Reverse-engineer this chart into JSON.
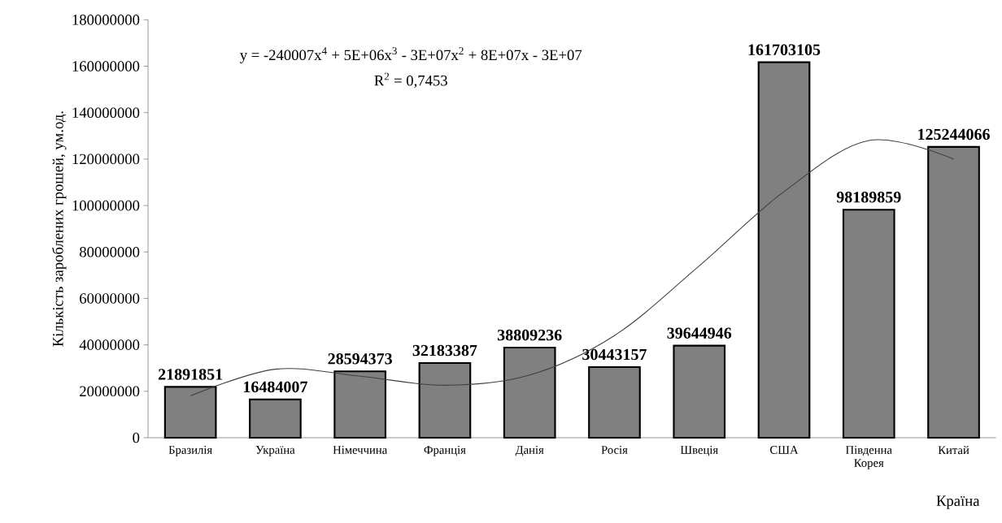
{
  "chart_data": {
    "type": "bar",
    "ylabel": "Кількість зароблених грошей, ум.од.",
    "xlabel": "Країна",
    "categories": [
      "Бразилія",
      "Україна",
      "Німеччина",
      "Франція",
      "Данія",
      "Росія",
      "Швеція",
      "США",
      "Південна Корея",
      "Китай"
    ],
    "series": [
      {
        "color": "#808080",
        "values": [
          21891851,
          16484007,
          28594373,
          32183387,
          38809236,
          30443157,
          39644946,
          161703105,
          98189859,
          125244066
        ],
        "value_labels": [
          "21891851",
          "16484007",
          "28594373",
          "32183387",
          "38809236",
          "30443157",
          "39644946",
          "161703105",
          "98189859",
          "125244066"
        ]
      },
      {
        "type": "line",
        "color": "#404040",
        "values": [
          18000000,
          29500000,
          26500000,
          22600000,
          27000000,
          44000000,
          74000000,
          106000000,
          128000000,
          120000000
        ]
      }
    ],
    "ylim": [
      0,
      180000000
    ],
    "yticks": [
      0,
      20000000,
      40000000,
      60000000,
      80000000,
      100000000,
      120000000,
      140000000,
      160000000,
      180000000
    ],
    "annotations": [
      "y = -240007x$^{4}$ + 5E+06x$^{3}$ - 3E+07x$^{2}$ + 8E+07x - 3E+07",
      "R$^{2}$ = 0,7453"
    ]
  }
}
